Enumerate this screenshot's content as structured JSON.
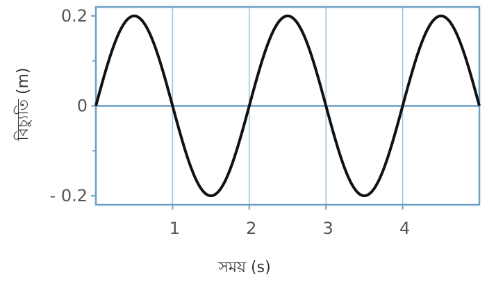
{
  "chart_data": {
    "type": "line",
    "title": "",
    "xlabel": "সময় (s)",
    "ylabel": "বিচ্যুতি (m)",
    "xlim": [
      0,
      5
    ],
    "ylim": [
      -0.22,
      0.22
    ],
    "x_ticks": [
      1,
      2,
      3,
      4
    ],
    "x_tick_labels": [
      "1",
      "2",
      "3",
      "4"
    ],
    "y_ticks": [
      0.2,
      0,
      -0.2
    ],
    "y_tick_labels": [
      "0.2",
      "0",
      "- 0.2"
    ],
    "y_minor_ticks": [
      0.1,
      -0.1
    ],
    "vertical_grid": true,
    "series": [
      {
        "amplitude": 0.2,
        "period": 2,
        "x": [
          0,
          0.25,
          0.5,
          0.75,
          1,
          1.25,
          1.5,
          1.75,
          2,
          2.25,
          2.5,
          2.75,
          3,
          3.25,
          3.5,
          3.75,
          4,
          4.25,
          4.5,
          4.75,
          5
        ],
        "y": [
          0,
          0.141,
          0.2,
          0.141,
          0,
          -0.141,
          -0.2,
          -0.141,
          0,
          0.141,
          0.2,
          0.141,
          0,
          -0.141,
          -0.2,
          -0.141,
          0,
          0.141,
          0.2,
          0.141,
          0
        ]
      }
    ],
    "colors": {
      "frame": "#6b9fc4",
      "grid": "#9cc0db",
      "curve": "#111111"
    }
  }
}
